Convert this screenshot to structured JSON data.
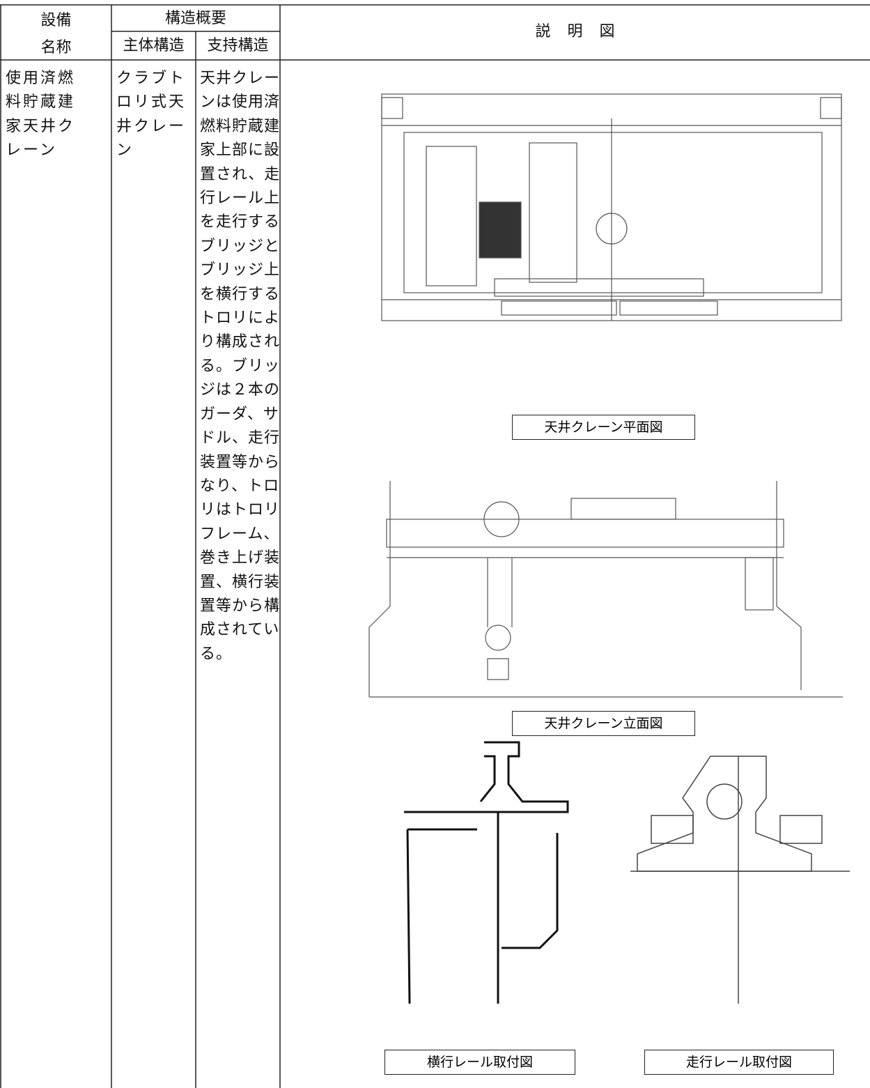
{
  "table": {
    "header": {
      "equipment_name": [
        "設備",
        "名称"
      ],
      "structure_overview": "構造概要",
      "main_structure": "主体構造",
      "support_structure": "支持構造",
      "figure": "説明図"
    },
    "rows": [
      {
        "equipment_name": [
          "使用済燃",
          "料貯蔵建",
          "家天井ク",
          "レーン"
        ],
        "main_structure": [
          "クラブト",
          "ロリ式天",
          "井クレー",
          "ン"
        ],
        "support_structure": [
          "天井クレー",
          "ンは使用済",
          "燃料貯蔵建",
          "家上部に設",
          "置され、走",
          "行レール上",
          "を走行する",
          "ブリッジと",
          "ブリッジ上",
          "を横行する",
          "トロリによ",
          "り構成され",
          "る。ブリッ",
          "ジは２本の",
          "ガーダ、サ",
          "ドル、走行",
          "装置等から",
          "なり、トロ",
          "リはトロリ",
          "フレーム、",
          "巻き上げ装",
          "置、横行装",
          "置等から構",
          "成されてい",
          "る。"
        ]
      }
    ]
  },
  "figures": {
    "plan_caption": "天井クレーン平面図",
    "elevation_caption": "天井クレーン立面図",
    "traverse_rail_caption": "横行レール取付図",
    "travel_rail_caption": "走行レール取付図"
  }
}
